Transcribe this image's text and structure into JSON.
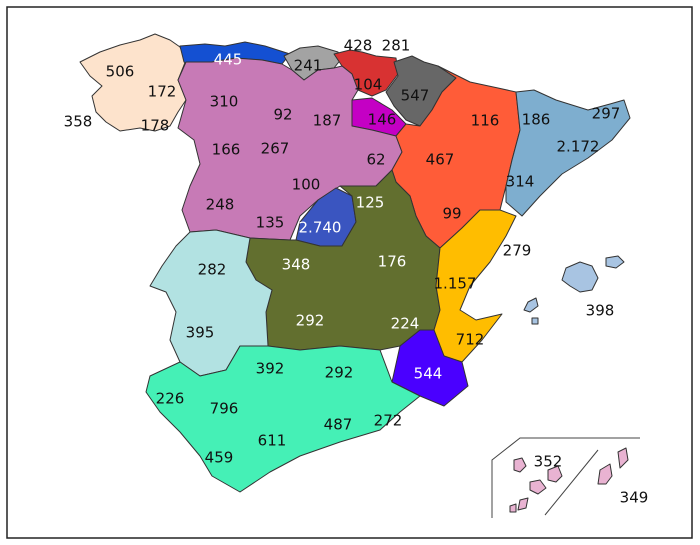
{
  "regions": [
    {
      "name": "galicia",
      "color": "#fde3cc"
    },
    {
      "name": "asturias",
      "color": "#1450d2"
    },
    {
      "name": "cantabria",
      "color": "#a3a3a3"
    },
    {
      "name": "pais-vasco",
      "color": "#d83232"
    },
    {
      "name": "navarra",
      "color": "#676767"
    },
    {
      "name": "la-rioja",
      "color": "#c400c4"
    },
    {
      "name": "castilla-y-leon",
      "color": "#c77ab6"
    },
    {
      "name": "aragon",
      "color": "#ff5c38"
    },
    {
      "name": "cataluna",
      "color": "#7eaecf"
    },
    {
      "name": "madrid",
      "color": "#3a55c0"
    },
    {
      "name": "castilla-la-mancha",
      "color": "#626f2f"
    },
    {
      "name": "comunidad-valenciana",
      "color": "#ffbd00"
    },
    {
      "name": "murcia",
      "color": "#4a00ff"
    },
    {
      "name": "extremadura",
      "color": "#b2e2e2"
    },
    {
      "name": "andalucia",
      "color": "#45f0b6"
    },
    {
      "name": "baleares",
      "color": "#a8c4e2"
    },
    {
      "name": "canarias",
      "color": "#e9b3d2"
    }
  ],
  "labels": [
    {
      "text": "506"
    },
    {
      "text": "172"
    },
    {
      "text": "358"
    },
    {
      "text": "178"
    },
    {
      "text": "445"
    },
    {
      "text": "241"
    },
    {
      "text": "428"
    },
    {
      "text": "281"
    },
    {
      "text": "104"
    },
    {
      "text": "547"
    },
    {
      "text": "146"
    },
    {
      "text": "310"
    },
    {
      "text": "92"
    },
    {
      "text": "187"
    },
    {
      "text": "166"
    },
    {
      "text": "267"
    },
    {
      "text": "62"
    },
    {
      "text": "100"
    },
    {
      "text": "248"
    },
    {
      "text": "135"
    },
    {
      "text": "116"
    },
    {
      "text": "467"
    },
    {
      "text": "99"
    },
    {
      "text": "186"
    },
    {
      "text": "297"
    },
    {
      "text": "2.172"
    },
    {
      "text": "314"
    },
    {
      "text": "2.740"
    },
    {
      "text": "125"
    },
    {
      "text": "348"
    },
    {
      "text": "176"
    },
    {
      "text": "292"
    },
    {
      "text": "224"
    },
    {
      "text": "279"
    },
    {
      "text": "1.157"
    },
    {
      "text": "712"
    },
    {
      "text": "544"
    },
    {
      "text": "282"
    },
    {
      "text": "395"
    },
    {
      "text": "392"
    },
    {
      "text": "292"
    },
    {
      "text": "226"
    },
    {
      "text": "796"
    },
    {
      "text": "487"
    },
    {
      "text": "272"
    },
    {
      "text": "611"
    },
    {
      "text": "459"
    },
    {
      "text": "398"
    },
    {
      "text": "352"
    },
    {
      "text": "349"
    }
  ]
}
